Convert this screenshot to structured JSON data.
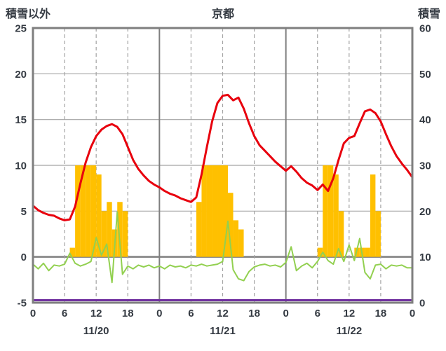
{
  "chart_data": {
    "type": "line+bar",
    "title": "京都",
    "left_axis": {
      "label": "積雪以外",
      "min": -5,
      "max": 25,
      "ticks": [
        25,
        20,
        15,
        10,
        5,
        0,
        -5
      ]
    },
    "right_axis": {
      "label": "積雪",
      "min": 0,
      "max": 60,
      "ticks": [
        60,
        50,
        40,
        30,
        20,
        10,
        0
      ]
    },
    "x_axis": {
      "days": [
        "11/20",
        "11/21",
        "11/22"
      ],
      "hour_ticks": [
        0,
        6,
        12,
        18
      ],
      "end_label": "0",
      "total_hours": 72
    },
    "grid": {
      "h_lines": [
        20,
        15,
        10,
        5
      ],
      "zero_line": 0,
      "dashed_hours": [
        6,
        12,
        18,
        30,
        36,
        42,
        54,
        60,
        66
      ],
      "solid_hours": [
        24,
        48
      ]
    },
    "series": {
      "temperature_red": {
        "color": "#e8000d",
        "axis": "left",
        "width": 3,
        "values": [
          5.6,
          5.1,
          4.8,
          4.6,
          4.5,
          4.2,
          4.0,
          4.1,
          5.5,
          8.0,
          10.3,
          12.0,
          13.2,
          13.9,
          14.3,
          14.5,
          14.2,
          13.4,
          12.0,
          10.6,
          9.6,
          8.9,
          8.3,
          7.9,
          7.6,
          7.2,
          6.9,
          6.7,
          6.4,
          6.2,
          6.0,
          6.5,
          9.0,
          12.0,
          14.8,
          16.8,
          17.6,
          17.7,
          17.1,
          17.4,
          16.2,
          14.6,
          13.2,
          12.2,
          11.6,
          11.0,
          10.4,
          9.9,
          9.4,
          9.9,
          9.3,
          8.6,
          8.1,
          7.8,
          7.3,
          7.9,
          7.2,
          8.6,
          10.6,
          12.4,
          13.0,
          13.2,
          14.6,
          15.9,
          16.1,
          15.7,
          14.8,
          13.4,
          12.1,
          11.0,
          10.2,
          9.5,
          8.7
        ]
      },
      "green_line": {
        "color": "#92d050",
        "axis": "left",
        "width": 2,
        "values": [
          -0.8,
          -1.3,
          -0.7,
          -1.5,
          -0.9,
          -1.0,
          -0.8,
          0.4,
          -0.7,
          -1.0,
          -0.8,
          -0.5,
          2.1,
          0.2,
          1.4,
          -2.8,
          4.9,
          -1.9,
          -1.0,
          -1.3,
          -0.9,
          -1.1,
          -0.9,
          -1.2,
          -1.0,
          -1.3,
          -0.9,
          -1.1,
          -1.0,
          -1.2,
          -0.9,
          -1.0,
          -0.8,
          -1.0,
          -0.9,
          -0.8,
          -0.5,
          3.9,
          -1.4,
          -2.4,
          -2.6,
          -1.6,
          -1.1,
          -0.9,
          -0.8,
          -1.0,
          -0.9,
          -1.1,
          -0.6,
          1.1,
          -1.5,
          -1.0,
          -0.7,
          -1.2,
          -0.5,
          0.5,
          -0.4,
          -0.8,
          0.9,
          -0.5,
          1.3,
          -0.4,
          2.0,
          -1.7,
          -2.4,
          -0.9,
          -0.8,
          -1.3,
          -0.9,
          -1.0,
          -0.9,
          -1.2,
          -1.2
        ]
      },
      "snow_purple": {
        "color": "#7030a0",
        "axis": "right",
        "width": 3,
        "constant_value": 0
      }
    },
    "bars": {
      "color": "#ffc000",
      "axis": "left",
      "baseline": 0,
      "values": [
        [
          7,
          1
        ],
        [
          8,
          10
        ],
        [
          9,
          10
        ],
        [
          10,
          10
        ],
        [
          11,
          10
        ],
        [
          12,
          9
        ],
        [
          13,
          5
        ],
        [
          14,
          6
        ],
        [
          15,
          3
        ],
        [
          16,
          6
        ],
        [
          17,
          5
        ],
        [
          31,
          6
        ],
        [
          32,
          10
        ],
        [
          33,
          10
        ],
        [
          34,
          10
        ],
        [
          35,
          10
        ],
        [
          36,
          10
        ],
        [
          37,
          7
        ],
        [
          38,
          4
        ],
        [
          39,
          3
        ],
        [
          54,
          1
        ],
        [
          55,
          10
        ],
        [
          56,
          10
        ],
        [
          57,
          9
        ],
        [
          58,
          5
        ],
        [
          61,
          1
        ],
        [
          62,
          1
        ],
        [
          63,
          1
        ],
        [
          64,
          9
        ],
        [
          65,
          5
        ]
      ]
    }
  },
  "colors": {
    "border": "#7f7f7f",
    "grid": "#a3a3a3",
    "text": "#343a42",
    "background": "#ffffff"
  }
}
